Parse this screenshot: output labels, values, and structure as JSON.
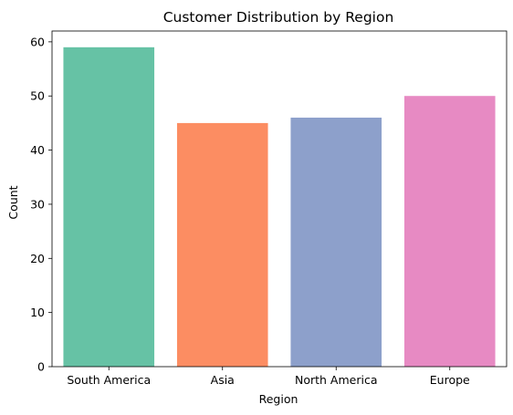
{
  "chart_data": {
    "type": "bar",
    "title": "Customer Distribution by Region",
    "xlabel": "Region",
    "ylabel": "Count",
    "categories": [
      "South America",
      "Asia",
      "North America",
      "Europe"
    ],
    "values": [
      59,
      45,
      46,
      50
    ],
    "colors": [
      "#66c2a5",
      "#fc8d62",
      "#8da0cb",
      "#e78ac3"
    ],
    "ylim": [
      0,
      62
    ],
    "yticks": [
      0,
      10,
      20,
      30,
      40,
      50,
      60
    ],
    "grid": false,
    "legend": "none"
  }
}
